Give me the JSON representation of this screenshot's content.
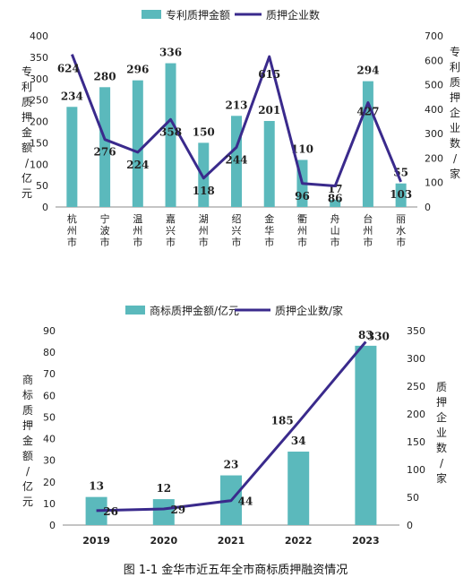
{
  "chart_data": [
    {
      "type": "bar",
      "categories": [
        "杭州市",
        "宁波市",
        "温州市",
        "嘉兴市",
        "湖州市",
        "绍兴市",
        "金华市",
        "衢州市",
        "舟山市",
        "台州市",
        "丽水市"
      ],
      "series": [
        {
          "name": "专利质押金额",
          "type": "bar",
          "axis": "left",
          "values": [
            234,
            280,
            296,
            336,
            150,
            213,
            201,
            110,
            17,
            294,
            55
          ]
        },
        {
          "name": "质押企业数",
          "type": "line",
          "axis": "right",
          "values": [
            624,
            276,
            224,
            358,
            118,
            244,
            615,
            96,
            86,
            427,
            103
          ]
        }
      ],
      "ylabel": "专利质押金额/亿元",
      "y2label": "专利质押企业数/家",
      "ylim": [
        0,
        400
      ],
      "y2lim": [
        0,
        700
      ],
      "yticks": [
        "0",
        "50",
        "100",
        "150",
        "200",
        "250",
        "300",
        "350",
        "400"
      ],
      "y2ticks": [
        "0",
        "100",
        "200",
        "300",
        "400",
        "500",
        "600",
        "700"
      ],
      "legend": "top-center",
      "grid": false,
      "colors": {
        "bar": "#5bb9bc",
        "line": "#3a2a8c"
      }
    },
    {
      "type": "bar",
      "categories": [
        "2019",
        "2020",
        "2021",
        "2022",
        "2023"
      ],
      "series": [
        {
          "name": "商标质押金额/亿元",
          "type": "bar",
          "axis": "left",
          "values": [
            13,
            12,
            23,
            34,
            83
          ]
        },
        {
          "name": "质押企业数/家",
          "type": "line",
          "axis": "right",
          "values": [
            26,
            29,
            44,
            185,
            330
          ]
        }
      ],
      "ylabel": "商标质押金额/亿元",
      "y2label": "质押企业数/家",
      "ylim": [
        0,
        90
      ],
      "y2lim": [
        0,
        350
      ],
      "yticks": [
        "0",
        "10",
        "20",
        "30",
        "40",
        "50",
        "60",
        "70",
        "80",
        "90"
      ],
      "y2ticks": [
        "0",
        "50",
        "100",
        "150",
        "200",
        "250",
        "300",
        "350"
      ],
      "legend": "top-center",
      "grid": false,
      "colors": {
        "bar": "#5bb9bc",
        "line": "#3a2a8c"
      }
    }
  ],
  "caption": "图 1-1  金华市近五年全市商标质押融资情况"
}
